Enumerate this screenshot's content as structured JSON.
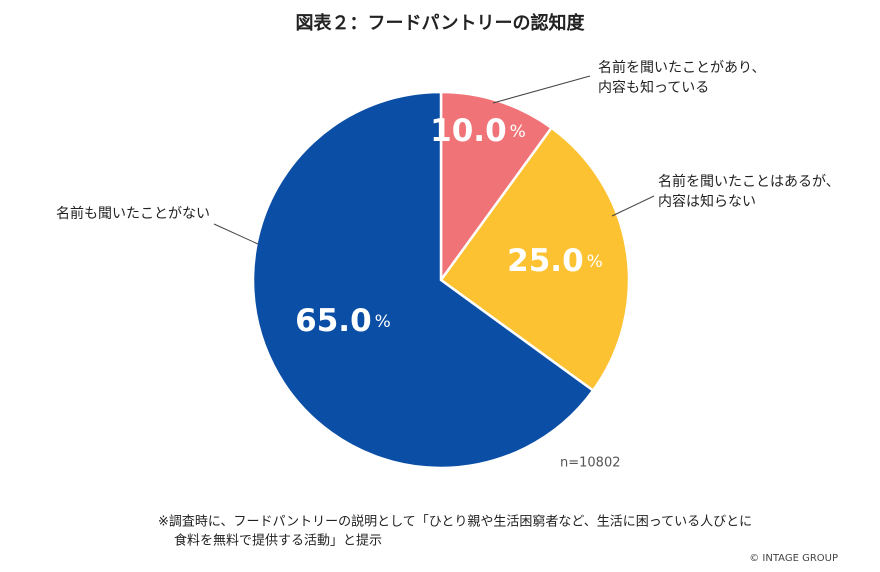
{
  "chart_data": {
    "type": "pie",
    "title": "図表２：フードパントリーの認知度",
    "categories": [
      "名前を聞いたことがあり、\n内容も知っている",
      "名前を聞いたことはあるが、\n内容は知らない",
      "名前も聞いたことがない"
    ],
    "values": [
      10.0,
      25.0,
      65.0
    ],
    "value_labels": [
      "10.0%",
      "25.0%",
      "65.0%"
    ],
    "colors": [
      "#f07378",
      "#fcc232",
      "#0a4ea6"
    ],
    "sample_note": "n=10802",
    "footnote": [
      "※調査時に、フードパントリーの説明として「ひとり親や生活困窮者など、生活に困っている人びとに",
      "食料を無料で提供する活動」と提示"
    ],
    "copyright": "© INTAGE GROUP"
  }
}
